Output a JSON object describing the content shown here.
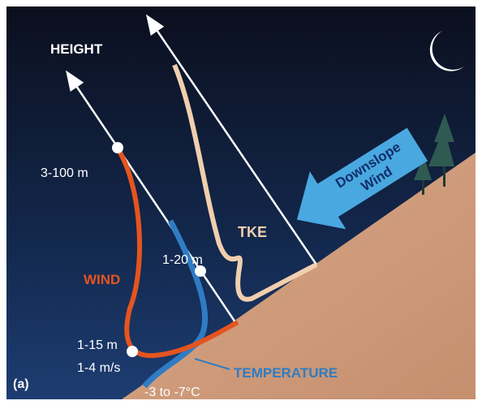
{
  "panel_label": "(a)",
  "axis_label": "HEIGHT",
  "labels": {
    "wind_height": "3-100 m",
    "tke_height": "1-20 m",
    "jet_height": "1-15 m",
    "jet_speed": "1-4 m/s",
    "temp_range": "-3 to -7°C"
  },
  "curves": {
    "wind": "WIND",
    "tke": "TKE",
    "temperature": "TEMPERATURE"
  },
  "arrow": {
    "line1": "Downslope",
    "line2": "Wind"
  }
}
